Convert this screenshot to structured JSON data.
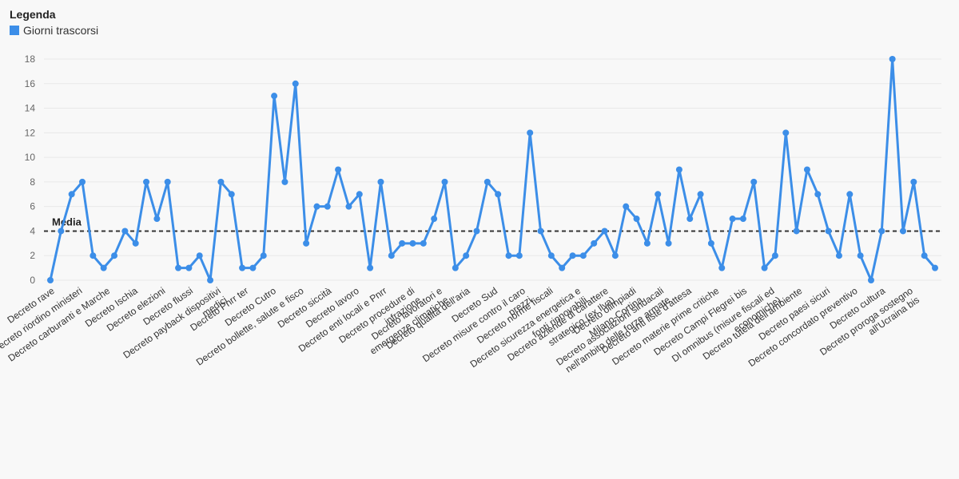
{
  "legend": {
    "title": "Legenda",
    "label": "Giorni trascorsi"
  },
  "colors": {
    "series": "#3c8ee8",
    "average": "#333333",
    "grid": "#e8e8e8"
  },
  "chart_data": {
    "type": "line",
    "title": "",
    "xlabel": "",
    "ylabel": "",
    "ylim": [
      0,
      18
    ],
    "yticks": [
      0,
      2,
      4,
      6,
      8,
      10,
      12,
      14,
      16,
      18
    ],
    "grid": true,
    "legend_position": "top-left",
    "average": {
      "label": "Media",
      "value": 4
    },
    "x_labels": [
      "Decreto rave",
      "Decreto riordino ministeri",
      "Decreto carburanti e Marche",
      "Decreto Ischia",
      "Decreto elezioni",
      "Decreto flussi",
      "Decreto payback dispositivi\nmedici",
      "Decreto Pnrr ter",
      "Decreto Cutro",
      "Decreto bollette, salute e fisco",
      "Decreto siccità",
      "Decreto lavoro",
      "Decreto enti locali e Pnrr",
      "Decreto procedure di\ninfrazione",
      "Decreto lavoratori e\nemergenze climatiche",
      "Decreto qualità dell'aria",
      "Decreto Sud",
      "Decreto misure contro il caro\nprezzi",
      "Decreto norme fiscali",
      "Decreto sicurezza energetica e\nfonti rinnovabili",
      "Decreto aziende di carattere\nstrategico (ex Ilva)",
      "Decreto olimpiadi\nMilano-Cortina",
      "Decreto associazioni sindacali\nnell'ambito delle forze armate",
      "Decreto anti liste d'attesa",
      "Decreto materie prime critiche",
      "Decreto Campi Flegrei bis",
      "Dl omnibus (misure fiscali ed\neconomiche)",
      "Decreto tutela dell'ambiente",
      "Decreto paesi sicuri",
      "Decreto concordato preventivo",
      "Decreto cultura",
      "Decreto proroga sostegno\nall'Ucraina bis"
    ],
    "series": [
      {
        "name": "Giorni trascorsi",
        "values": [
          0,
          4,
          7,
          8,
          2,
          1,
          2,
          4,
          3,
          8,
          5,
          8,
          1,
          1,
          2,
          0,
          8,
          7,
          1,
          1,
          2,
          15,
          8,
          16,
          3,
          6,
          6,
          9,
          6,
          7,
          1,
          8,
          2,
          3,
          3,
          3,
          5,
          8,
          1,
          2,
          4,
          8,
          7,
          2,
          2,
          12,
          4,
          2,
          1,
          2,
          2,
          3,
          4,
          2,
          6,
          5,
          3,
          7,
          3,
          9,
          5,
          7,
          3,
          1,
          5,
          5,
          8,
          1,
          2,
          12,
          4,
          9,
          7,
          4,
          2,
          7,
          2,
          0,
          4,
          18,
          4,
          8,
          2,
          1
        ]
      }
    ]
  }
}
